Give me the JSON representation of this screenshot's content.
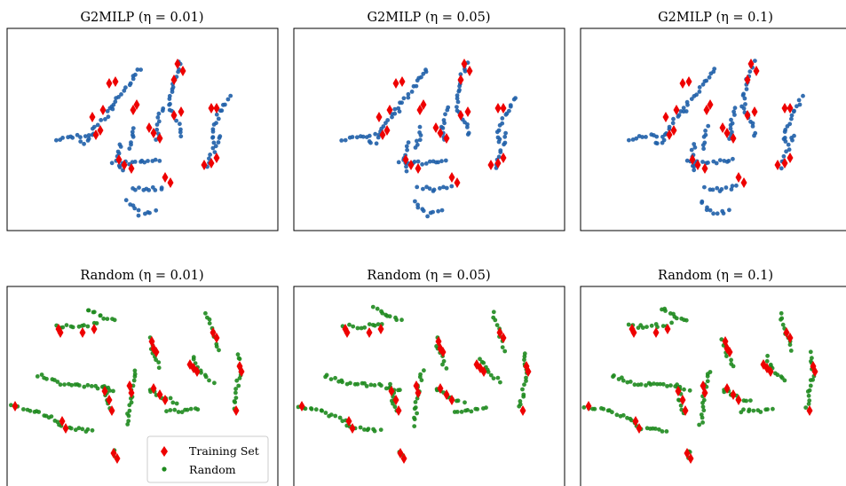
{
  "colors": {
    "training": "#ee0000",
    "g2milp": "#1f5fa8",
    "random": "#1e8a1e",
    "frame": "#000000"
  },
  "legend": {
    "training_label": "Training Set",
    "random_label": "Random",
    "placement": "lower-right of panel 4"
  },
  "chart_data": [
    {
      "type": "scatter",
      "title": "G2MILP (η = 0.01)",
      "generated_color": "blue"
    },
    {
      "type": "scatter",
      "title": "G2MILP (η = 0.05)",
      "generated_color": "blue"
    },
    {
      "type": "scatter",
      "title": "G2MILP (η = 0.1)",
      "generated_color": "blue"
    },
    {
      "type": "scatter",
      "title": "Random (η = 0.01)",
      "generated_color": "green"
    },
    {
      "type": "scatter",
      "title": "Random (η = 0.05)",
      "generated_color": "green"
    },
    {
      "type": "scatter",
      "title": "Random (η = 0.1)",
      "generated_color": "green"
    }
  ]
}
